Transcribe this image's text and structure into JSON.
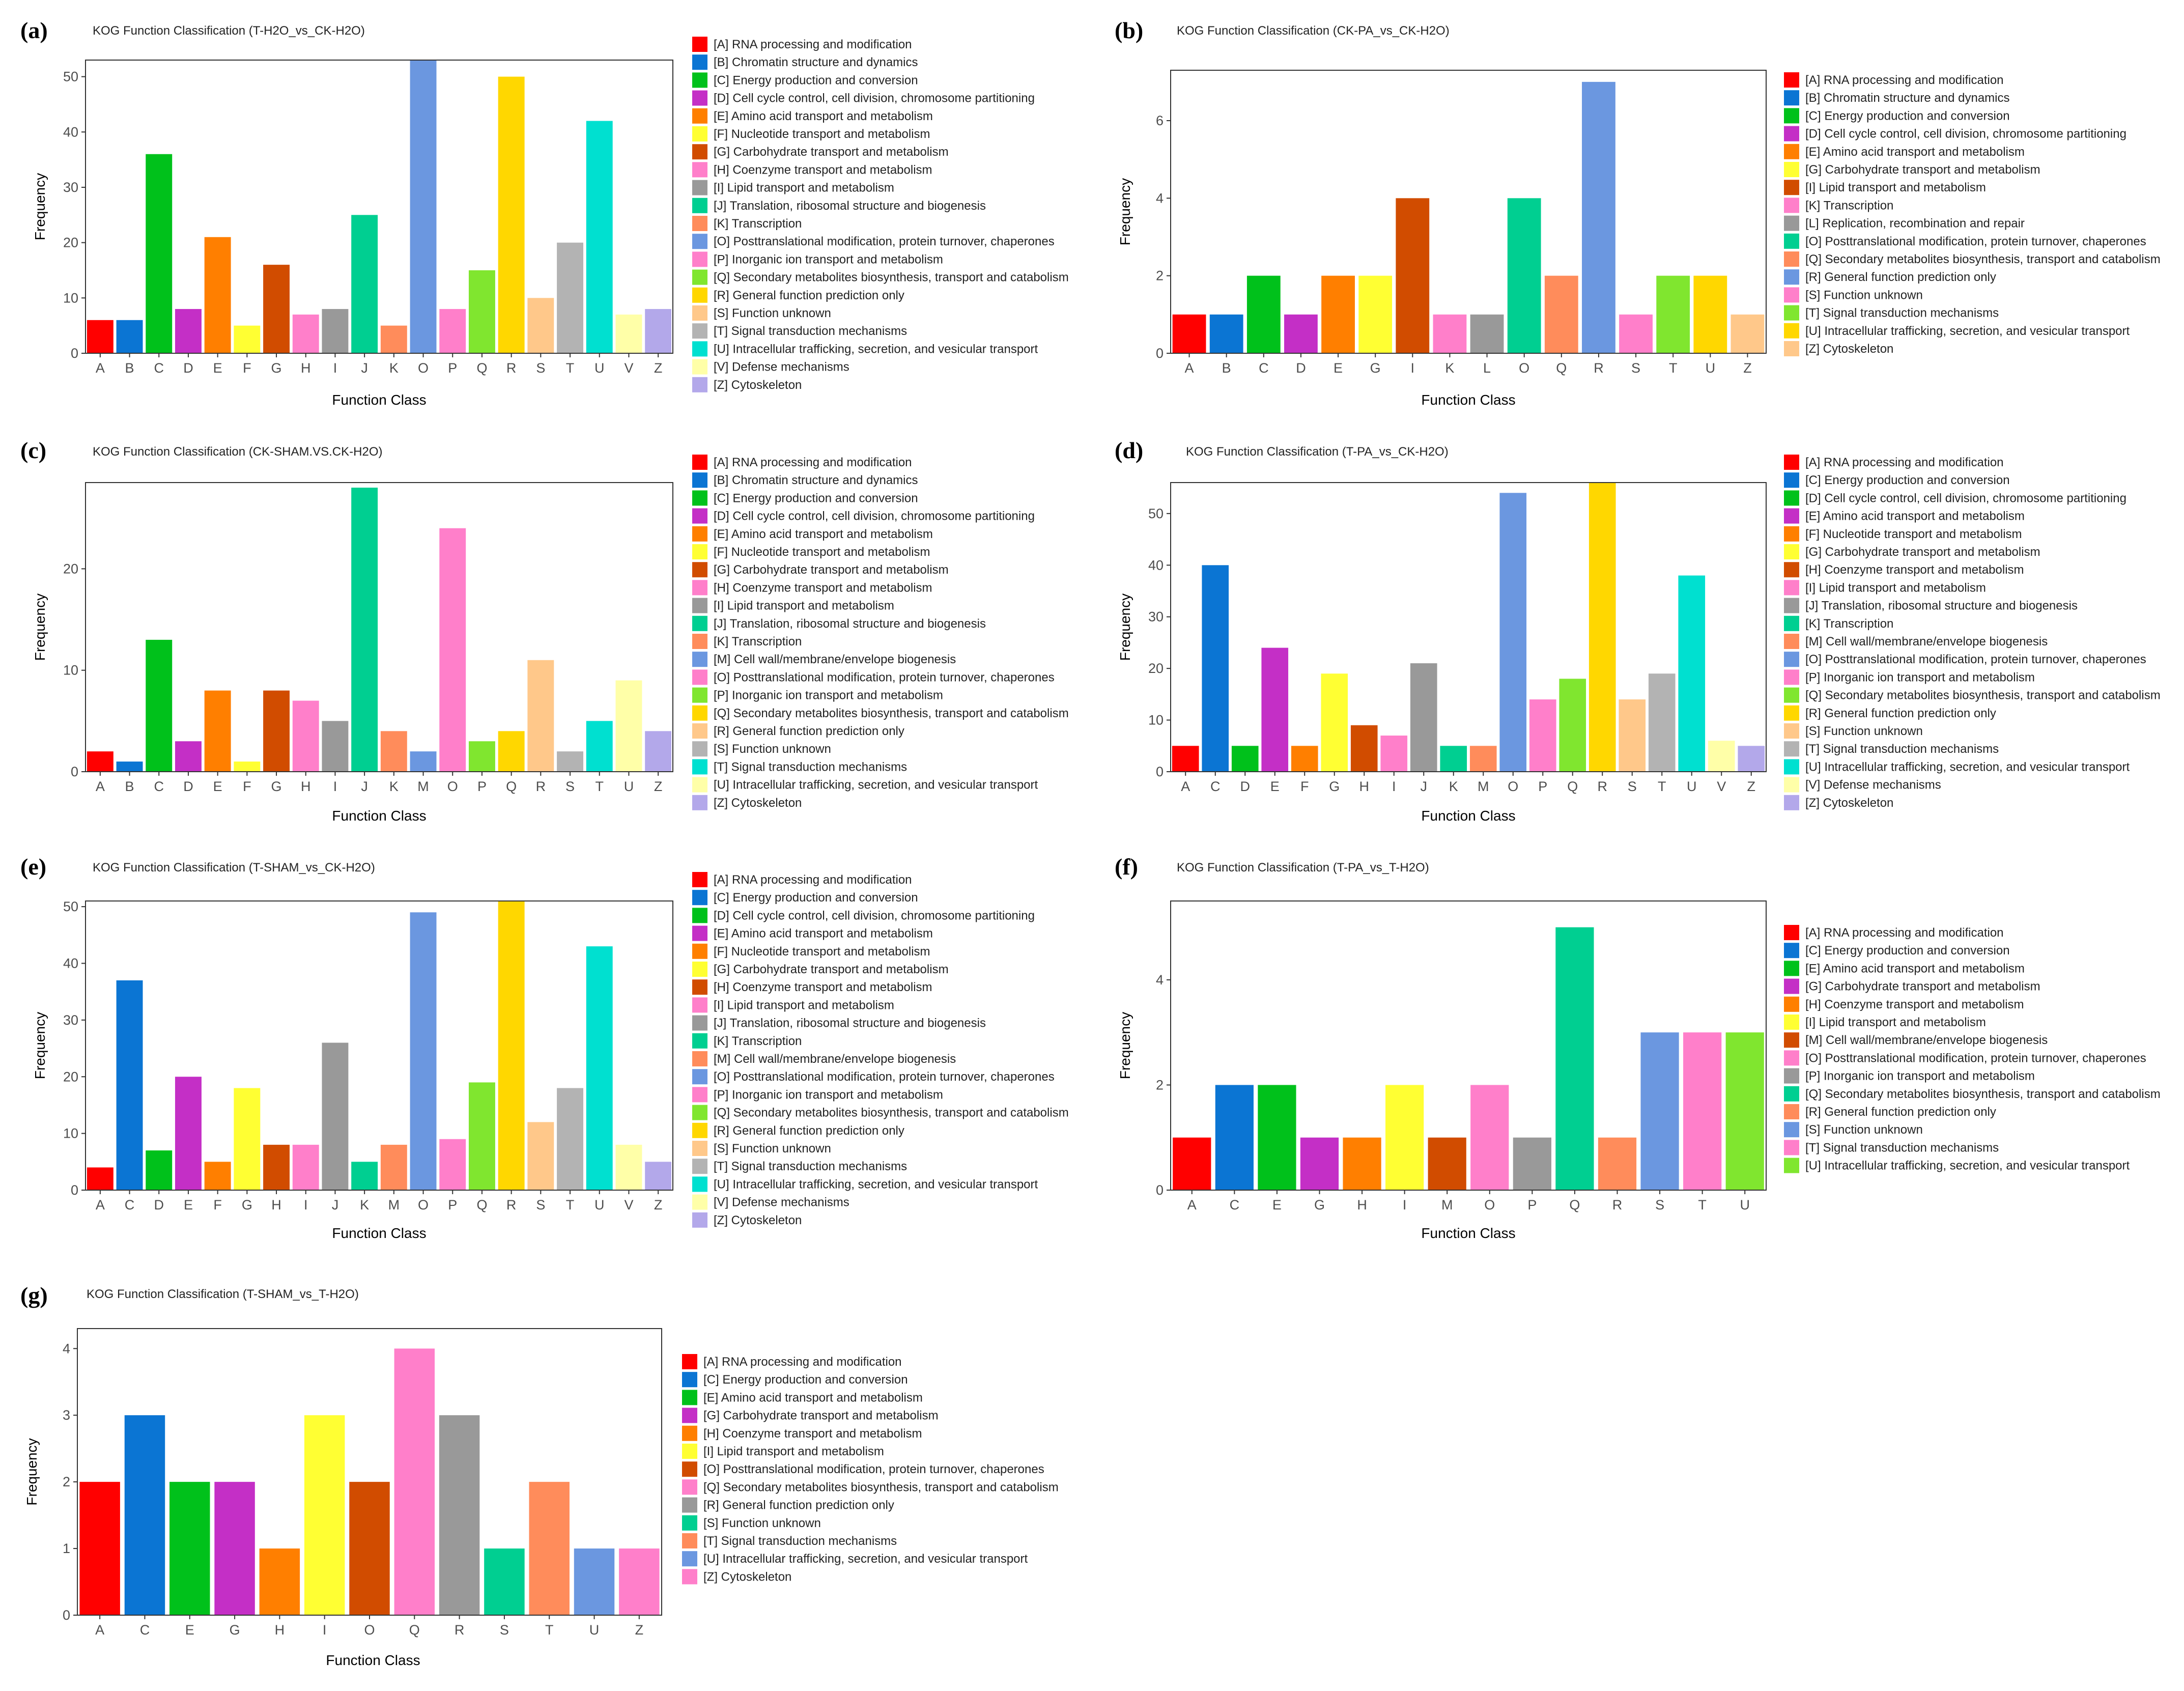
{
  "chart_data": [
    {
      "panel": "(a)",
      "type": "bar",
      "title": "KOG Function Classification (T-H2O_vs_CK-H2O)",
      "xlabel": "Function Class",
      "ylabel": "Frequency",
      "ylim": [
        0,
        53
      ],
      "yticks": [
        "0",
        "10",
        "20",
        "30",
        "40",
        "50"
      ],
      "categories": [
        "A",
        "B",
        "C",
        "D",
        "E",
        "F",
        "G",
        "H",
        "I",
        "J",
        "K",
        "O",
        "P",
        "Q",
        "R",
        "S",
        "T",
        "U",
        "V",
        "Z"
      ],
      "values": [
        6,
        6,
        36,
        8,
        21,
        5,
        16,
        7,
        8,
        25,
        5,
        53,
        8,
        15,
        50,
        10,
        20,
        42,
        7,
        8
      ],
      "colors": [
        "#ff0000",
        "#0b75d3",
        "#00c11b",
        "#c42fc6",
        "#ff7f00",
        "#ffff33",
        "#d14c00",
        "#ff7fca",
        "#999999",
        "#00cf91",
        "#ff8c5b",
        "#6b97e0",
        "#ff7fca",
        "#80e62f",
        "#ffd700",
        "#ffc88a",
        "#b3b3b3",
        "#00e0d0",
        "#ffffa8",
        "#b3a8ea"
      ],
      "legend": [
        "[A] RNA processing and modification",
        "[B] Chromatin structure and dynamics",
        "[C] Energy production and conversion",
        "[D] Cell cycle control, cell division, chromosome partitioning",
        "[E] Amino acid transport and metabolism",
        "[F] Nucleotide transport and metabolism",
        "[G] Carbohydrate transport and metabolism",
        "[H] Coenzyme transport and metabolism",
        "[I] Lipid transport and metabolism",
        "[J] Translation, ribosomal structure and biogenesis",
        "[K] Transcription",
        "[O] Posttranslational modification, protein turnover, chaperones",
        "[P] Inorganic ion transport and metabolism",
        "[Q] Secondary metabolites biosynthesis, transport and catabolism",
        "[R] General function prediction only",
        "[S] Function unknown",
        "[T] Signal transduction mechanisms",
        "[U] Intracellular trafficking, secretion, and vesicular transport",
        "[V] Defense mechanisms",
        "[Z] Cytoskeleton"
      ]
    },
    {
      "panel": "(b)",
      "type": "bar",
      "title": "KOG Function Classification (CK-PA_vs_CK-H2O)",
      "xlabel": "Function Class",
      "ylabel": "Frequency",
      "ylim": [
        0,
        7.3
      ],
      "yticks": [
        "0",
        "2",
        "4",
        "6"
      ],
      "categories": [
        "A",
        "B",
        "C",
        "D",
        "E",
        "G",
        "I",
        "K",
        "L",
        "O",
        "Q",
        "R",
        "S",
        "T",
        "U",
        "Z"
      ],
      "values": [
        1,
        1,
        2,
        1,
        2,
        2,
        4,
        1,
        1,
        4,
        2,
        7,
        1,
        2,
        2,
        1
      ],
      "colors": [
        "#ff0000",
        "#0b75d3",
        "#00c11b",
        "#c42fc6",
        "#ff7f00",
        "#ffff33",
        "#d14c00",
        "#ff7fca",
        "#999999",
        "#00cf91",
        "#ff8c5b",
        "#6b97e0",
        "#ff7fca",
        "#80e62f",
        "#ffd700",
        "#ffc88a"
      ],
      "legend": [
        "[A] RNA processing and modification",
        "[B] Chromatin structure and dynamics",
        "[C] Energy production and conversion",
        "[D] Cell cycle control, cell division, chromosome partitioning",
        "[E] Amino acid transport and metabolism",
        "[G] Carbohydrate transport and metabolism",
        "[I] Lipid transport and metabolism",
        "[K] Transcription",
        "[L] Replication, recombination and repair",
        "[O] Posttranslational modification, protein turnover, chaperones",
        "[Q] Secondary metabolites biosynthesis, transport and catabolism",
        "[R] General function prediction only",
        "[S] Function unknown",
        "[T] Signal transduction mechanisms",
        "[U] Intracellular trafficking, secretion, and vesicular transport",
        "[Z] Cytoskeleton"
      ]
    },
    {
      "panel": "(c)",
      "type": "bar",
      "title": "KOG Function Classification (CK-SHAM.VS.CK-H2O)",
      "xlabel": "Function Class",
      "ylabel": "Frequency",
      "ylim": [
        0,
        28.5
      ],
      "yticks": [
        "0",
        "10",
        "20"
      ],
      "categories": [
        "A",
        "B",
        "C",
        "D",
        "E",
        "F",
        "G",
        "H",
        "I",
        "J",
        "K",
        "M",
        "O",
        "P",
        "Q",
        "R",
        "S",
        "T",
        "U",
        "Z"
      ],
      "values": [
        2,
        1,
        13,
        3,
        8,
        1,
        8,
        7,
        5,
        28,
        4,
        2,
        24,
        3,
        4,
        11,
        2,
        5,
        9,
        4
      ],
      "colors": [
        "#ff0000",
        "#0b75d3",
        "#00c11b",
        "#c42fc6",
        "#ff7f00",
        "#ffff33",
        "#d14c00",
        "#ff7fca",
        "#999999",
        "#00cf91",
        "#ff8c5b",
        "#6b97e0",
        "#ff7fca",
        "#80e62f",
        "#ffd700",
        "#ffc88a",
        "#b3b3b3",
        "#00e0d0",
        "#ffffa8",
        "#b3a8ea"
      ],
      "legend": [
        "[A] RNA processing and modification",
        "[B] Chromatin structure and dynamics",
        "[C] Energy production and conversion",
        "[D] Cell cycle control, cell division, chromosome partitioning",
        "[E] Amino acid transport and metabolism",
        "[F] Nucleotide transport and metabolism",
        "[G] Carbohydrate transport and metabolism",
        "[H] Coenzyme transport and metabolism",
        "[I] Lipid transport and metabolism",
        "[J] Translation, ribosomal structure and biogenesis",
        "[K] Transcription",
        "[M] Cell wall/membrane/envelope biogenesis",
        "[O] Posttranslational modification, protein turnover, chaperones",
        "[P] Inorganic ion transport and metabolism",
        "[Q] Secondary metabolites biosynthesis, transport and catabolism",
        "[R] General function prediction only",
        "[S] Function unknown",
        "[T] Signal transduction mechanisms",
        "[U] Intracellular trafficking, secretion, and vesicular transport",
        "[Z] Cytoskeleton"
      ]
    },
    {
      "panel": "(d)",
      "type": "bar",
      "title": "KOG Function Classification (T-PA_vs_CK-H2O)",
      "xlabel": "Function Class",
      "ylabel": "Frequency",
      "ylim": [
        0,
        56
      ],
      "yticks": [
        "0",
        "10",
        "20",
        "30",
        "40",
        "50"
      ],
      "categories": [
        "A",
        "C",
        "D",
        "E",
        "F",
        "G",
        "H",
        "I",
        "J",
        "K",
        "M",
        "O",
        "P",
        "Q",
        "R",
        "S",
        "T",
        "U",
        "V",
        "Z"
      ],
      "values": [
        5,
        40,
        5,
        24,
        5,
        19,
        9,
        7,
        21,
        5,
        5,
        54,
        14,
        18,
        56,
        14,
        19,
        38,
        6,
        5
      ],
      "colors": [
        "#ff0000",
        "#0b75d3",
        "#00c11b",
        "#c42fc6",
        "#ff7f00",
        "#ffff33",
        "#d14c00",
        "#ff7fca",
        "#999999",
        "#00cf91",
        "#ff8c5b",
        "#6b97e0",
        "#ff7fca",
        "#80e62f",
        "#ffd700",
        "#ffc88a",
        "#b3b3b3",
        "#00e0d0",
        "#ffffa8",
        "#b3a8ea"
      ],
      "legend": [
        "[A] RNA processing and modification",
        "[C] Energy production and conversion",
        "[D] Cell cycle control, cell division, chromosome partitioning",
        "[E] Amino acid transport and metabolism",
        "[F] Nucleotide transport and metabolism",
        "[G] Carbohydrate transport and metabolism",
        "[H] Coenzyme transport and metabolism",
        "[I] Lipid transport and metabolism",
        "[J] Translation, ribosomal structure and biogenesis",
        "[K] Transcription",
        "[M] Cell wall/membrane/envelope biogenesis",
        "[O] Posttranslational modification, protein turnover, chaperones",
        "[P] Inorganic ion transport and metabolism",
        "[Q] Secondary metabolites biosynthesis, transport and catabolism",
        "[R] General function prediction only",
        "[S] Function unknown",
        "[T] Signal transduction mechanisms",
        "[U] Intracellular trafficking, secretion, and vesicular transport",
        "[V] Defense mechanisms",
        "[Z] Cytoskeleton"
      ]
    },
    {
      "panel": "(e)",
      "type": "bar",
      "title": "KOG Function Classification (T-SHAM_vs_CK-H2O)",
      "xlabel": "Function Class",
      "ylabel": "Frequency",
      "ylim": [
        0,
        51
      ],
      "yticks": [
        "0",
        "10",
        "20",
        "30",
        "40",
        "50"
      ],
      "categories": [
        "A",
        "C",
        "D",
        "E",
        "F",
        "G",
        "H",
        "I",
        "J",
        "K",
        "M",
        "O",
        "P",
        "Q",
        "R",
        "S",
        "T",
        "U",
        "V",
        "Z"
      ],
      "values": [
        4,
        37,
        7,
        20,
        5,
        18,
        8,
        8,
        26,
        5,
        8,
        49,
        9,
        19,
        51,
        12,
        18,
        43,
        8,
        5
      ],
      "colors": [
        "#ff0000",
        "#0b75d3",
        "#00c11b",
        "#c42fc6",
        "#ff7f00",
        "#ffff33",
        "#d14c00",
        "#ff7fca",
        "#999999",
        "#00cf91",
        "#ff8c5b",
        "#6b97e0",
        "#ff7fca",
        "#80e62f",
        "#ffd700",
        "#ffc88a",
        "#b3b3b3",
        "#00e0d0",
        "#ffffa8",
        "#b3a8ea"
      ],
      "legend": [
        "[A] RNA processing and modification",
        "[C] Energy production and conversion",
        "[D] Cell cycle control, cell division, chromosome partitioning",
        "[E] Amino acid transport and metabolism",
        "[F] Nucleotide transport and metabolism",
        "[G] Carbohydrate transport and metabolism",
        "[H] Coenzyme transport and metabolism",
        "[I] Lipid transport and metabolism",
        "[J] Translation, ribosomal structure and biogenesis",
        "[K] Transcription",
        "[M] Cell wall/membrane/envelope biogenesis",
        "[O] Posttranslational modification, protein turnover, chaperones",
        "[P] Inorganic ion transport and metabolism",
        "[Q] Secondary metabolites biosynthesis, transport and catabolism",
        "[R] General function prediction only",
        "[S] Function unknown",
        "[T] Signal transduction mechanisms",
        "[U] Intracellular trafficking, secretion, and vesicular transport",
        "[V] Defense mechanisms",
        "[Z] Cytoskeleton"
      ]
    },
    {
      "panel": "(f)",
      "type": "bar",
      "title": "KOG Function Classification (T-PA_vs_T-H2O)",
      "xlabel": "Function Class",
      "ylabel": "Frequency",
      "ylim": [
        0,
        5.5
      ],
      "yticks": [
        "0",
        "2",
        "4"
      ],
      "categories": [
        "A",
        "C",
        "E",
        "G",
        "H",
        "I",
        "M",
        "O",
        "P",
        "Q",
        "R",
        "S",
        "T",
        "U"
      ],
      "values": [
        1,
        2,
        2,
        1,
        1,
        2,
        1,
        2,
        1,
        5,
        1,
        3,
        3,
        3
      ],
      "colors": [
        "#ff0000",
        "#0b75d3",
        "#00c11b",
        "#c42fc6",
        "#ff7f00",
        "#ffff33",
        "#d14c00",
        "#ff7fca",
        "#999999",
        "#00cf91",
        "#ff8c5b",
        "#6b97e0",
        "#ff7fca",
        "#80e62f"
      ],
      "legend": [
        "[A] RNA processing and modification",
        "[C] Energy production and conversion",
        "[E] Amino acid transport and metabolism",
        "[G] Carbohydrate transport and metabolism",
        "[H] Coenzyme transport and metabolism",
        "[I] Lipid transport and metabolism",
        "[M] Cell wall/membrane/envelope biogenesis",
        "[O] Posttranslational modification, protein turnover, chaperones",
        "[P] Inorganic ion transport and metabolism",
        "[Q] Secondary metabolites biosynthesis, transport and catabolism",
        "[R] General function prediction only",
        "[S] Function unknown",
        "[T] Signal transduction mechanisms",
        "[U] Intracellular trafficking, secretion, and vesicular transport"
      ]
    },
    {
      "panel": "(g)",
      "type": "bar",
      "title": "KOG Function Classification (T-SHAM_vs_T-H2O)",
      "xlabel": "Function Class",
      "ylabel": "Frequency",
      "ylim": [
        0,
        4.3
      ],
      "yticks": [
        "0",
        "1",
        "2",
        "3",
        "4"
      ],
      "categories": [
        "A",
        "C",
        "E",
        "G",
        "H",
        "I",
        "O",
        "Q",
        "R",
        "S",
        "T",
        "U",
        "Z"
      ],
      "values": [
        2,
        3,
        2,
        2,
        1,
        3,
        2,
        4,
        3,
        1,
        2,
        1,
        1
      ],
      "colors": [
        "#ff0000",
        "#0b75d3",
        "#00c11b",
        "#c42fc6",
        "#ff7f00",
        "#ffff33",
        "#d14c00",
        "#ff7fca",
        "#999999",
        "#00cf91",
        "#ff8c5b",
        "#6b97e0",
        "#ff7fca"
      ],
      "legend": [
        "[A] RNA processing and modification",
        "[C] Energy production and conversion",
        "[E] Amino acid transport and metabolism",
        "[G] Carbohydrate transport and metabolism",
        "[H] Coenzyme transport and metabolism",
        "[I] Lipid transport and metabolism",
        "[O] Posttranslational modification, protein turnover, chaperones",
        "[Q] Secondary metabolites biosynthesis, transport and catabolism",
        "[R] General function prediction only",
        "[S] Function unknown",
        "[T] Signal transduction mechanisms",
        "[U] Intracellular trafficking, secretion, and vesicular transport",
        "[Z] Cytoskeleton"
      ]
    }
  ]
}
